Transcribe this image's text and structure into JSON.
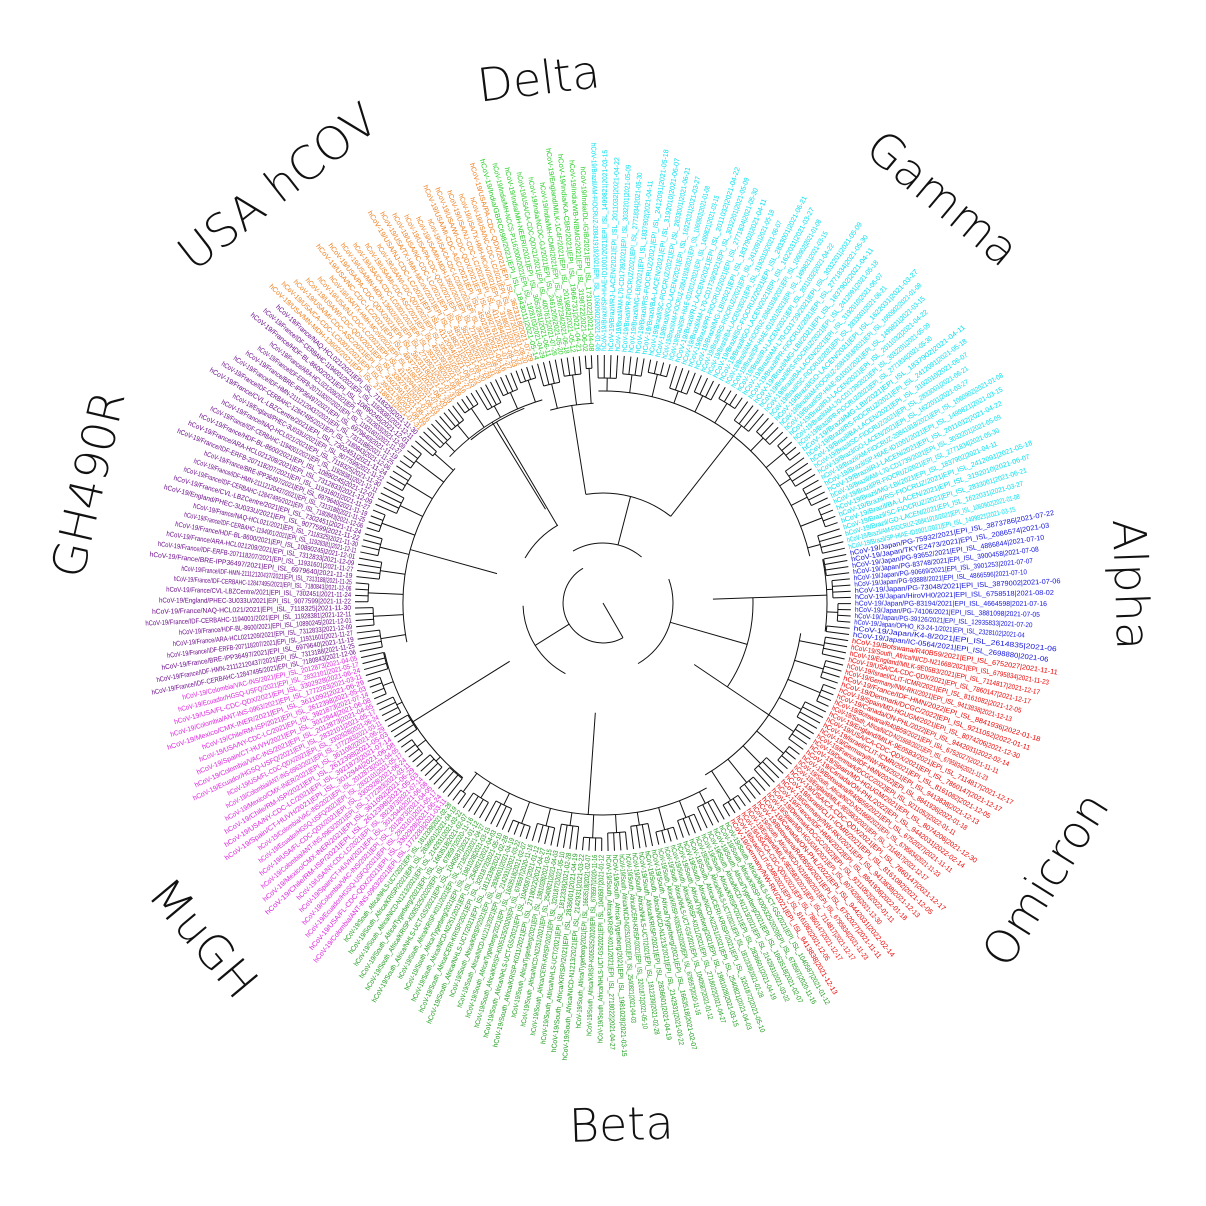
{
  "clades": [
    {
      "key": "delta",
      "label": "Delta",
      "color": "#22cc22",
      "start": -16,
      "end": -2,
      "labelAngle": -7,
      "count": 10
    },
    {
      "key": "gamma",
      "label": "Gamma",
      "color": "#00e0ee",
      "start": -2,
      "end": 78,
      "labelAngle": 40,
      "count": 52
    },
    {
      "key": "alpha",
      "label": "Alpha",
      "color": "#1111dd",
      "start": 78,
      "end": 98,
      "labelAngle": 88,
      "count": 14
    },
    {
      "key": "omicron",
      "label": "Omicron",
      "color": "#ee0000",
      "start": 98,
      "end": 150,
      "labelAngle": 122,
      "count": 36
    },
    {
      "key": "beta",
      "label": "Beta",
      "color": "#1a9a1a",
      "start": 150,
      "end": 218,
      "labelAngle": 178,
      "count": 46
    },
    {
      "key": "mugh",
      "label": "MuGH",
      "color": "#dd22dd",
      "start": 218,
      "end": 258,
      "labelAngle": 230,
      "count": 28
    },
    {
      "key": "gh490r",
      "label": "GH490R",
      "color": "#6a0a8a",
      "start": 258,
      "end": 313,
      "labelAngle": 283,
      "count": 38
    },
    {
      "key": "usa",
      "label": "USA hCOV",
      "color": "#f07c18",
      "start": 313,
      "end": 344,
      "labelAngle": 322,
      "count": 24
    }
  ],
  "leaves": {
    "delta": [
      "hCoV-19/India/GBRC698/2021|EPI_ISL_1843011|2021-05-14",
      "hCoV-19/India/MH-NCCS-P1162000/2021|EPI_ISL_1928103|2021-04-29",
      "hCoV-19/India/MH-NEERI/2021|EPI_ISL_3053281|2021-06-11",
      "hCoV-19/USA/CA-CDC-QDX21/2021|EPI_ISL_4007612|2021-07-26",
      "hCoV-19/India/NCDC-GJ/2021|EPI_ISL_2461205|2021-05-20",
      "hCoV-19/India/MH-ICMR/2021|EPI_ISL_2987234|2021-06-18",
      "hCoV-19/England/MILK-1C4F/2021|EPI_ISL_2019882|2021-05-12",
      "hCoV-19/India/KA-CBR/2021|EPI_ISL_1966731|2021-04-21",
      "hCoV-19/India/WB-NIBMG/2021|EPI_ISL_3198722|2021-06-02",
      "hCoV-19/India/DL-IGIB/2021|EPI_ISL_1731022|2021-04-08"
    ],
    "gamma": [
      "hCoV-19/Brazil/AM-FIOCRUZ-20841918/2021|EPI_ISL_1060902|2021-01-08",
      "hCoV-19/Brazil/SP-HIAE-ID1001/2021|EPI_ISL_1499821|2021-03-15",
      "hCoV-19/Brazil/RJ-LACEN/2021|EPI_ISL_2011032|2021-04-22",
      "hCoV-19/Brazil/AM-L70-CD1739/2021|EPI_ISL_3032201|2021-05-09",
      "hCoV-19/Brazil/PR-FIOCRUZ/2021|EPI_ISL_2771834|2021-05-30",
      "hCoV-19/Brazil/MG-LBI/2021|EPI_ISL_1837902|2021-04-11",
      "hCoV-19/Brazil/RS-FIOCRUZ/2021|EPI_ISL_2412091|2021-05-18",
      "hCoV-19/Brazil/BA-LACEN/2021|EPI_ISL_3192010|2021-06-07",
      "hCoV-19/Brazil/SC-FIOCRUZ/2021|EPI_ISL_2833001|2021-06-21",
      "hCoV-19/Brazil/GO-LACEN/2021|EPI_ISL_1622031|2021-03-27"
    ],
    "alpha": [
      "hCoV-19/Japan/PG-75932/2021|EPI_ISL_3873786|2021-07-22",
      "hCoV-19/Japan/TKYE2473/2021|EPI_ISL_2086574|2021-03",
      "hCoV-19/Japan/PG-93652/2021|EPI_ISL_4886844|2021-07-10",
      "hCoV-19/Japan/PG-83748/2021|EPI_ISL_3900458|2021-07-08",
      "hCoV-19/Japan/PG-90669/2021|EPI_ISL_3901253|2021-07-07",
      "hCoV-19/Japan/PG-93888/2021|EPI_ISL_4866596|2021-07-10",
      "hCoV-19/Japan/PG-73048/2021|EPI_ISL_3879002|2021-07-06",
      "hCoV-19/Japan/HiroVH0/2021|EPI_ISL_6758518|2021-08-02",
      "hCoV-19/Japan/PG-83194/2021|EPI_ISL_4664598|2021-07-16",
      "hCoV-19/Japan/PG-74106/2021|EPI_ISL_3881098|2021-07-05",
      "hCoV-19/Japan/PG-39126/2021|EPI_ISL_12935833|2021-07-20",
      "hCoV-19/Japan/OPHO_K3-24-1/2021|EPI_ISL_2328102|2021-04",
      "hCoV-19/Japan/K4-8/2021|EPI_ISL_2614835|2021-06",
      "hCoV-19/Japan/IC-0564/2021|EPI_ISL_2698880|2021-06"
    ],
    "omicron": [
      "hCoV-19/Botswana/R40B59/2021|EPI_ISL_6752027|2021-11-11",
      "hCoV-19/South_Africa/NICD-N21668/2021|EPI_ISL_6795834|2021-11-23",
      "hCoV-19/England/MILK-9E05B3/2021|EPI_ISL_7114817|2021-12-17",
      "hCoV-19/USA/CA-CDC-QDX/2021|EPI_ISL_7860147|2021-12-17",
      "hCoV-19/Israel/CLIT-ICMR/2021|EPI_ISL_8161082|2021-12-05",
      "hCoV-19/Germany/NW-RKI/2021|EPI_ISL_9413838|2021-12-13",
      "hCoV-19/France/IDF-HMN/2022|EPI_ISL_8841936|2022-01-18",
      "hCoV-19/Denmark/DCGC/2022|EPI_ISL_9211052|2022-01-11",
      "hCoV-19/Spain/MD-HGUGM/2021|EPI_ISL_8074206|2021-12-30",
      "hCoV-19/Canada/ON-PHL/2022|EPI_ISL_9442031|2022-02-14"
    ],
    "beta": [
      "hCoV-19/South_Africa/NHLS-UCT-GS/2021|EPI_ISL_1040587|2021-01-12",
      "hCoV-19/South_Africa/KRISP-K005325/2020|EPI_ISL_678597|2020-11-16",
      "hCoV-19/South_Africa/Tygerberg/2021|EPI_ISL_1663518|2021-02-07",
      "hCoV-19/South_Africa/NICD-N1213/2021|EPI_ISL_2142931|2021-03-22",
      "hCoV-19/South_Africa/KRISP/2021|EPI_ISL_2836601|2021-04-19",
      "hCoV-19/South_Africa/NHLS-UCT/2021|EPI_ISL_1812339|2021-02-28",
      "hCoV-19/South_Africa/CERI-KRISP/2021|EPI_ISL_3201872|2021-05-10",
      "hCoV-19/South_Africa/NICD-N2251/2021|EPI_ISL_2540821|2021-04-03",
      "hCoV-19/South_Africa/Tygerberg/2021|EPI_ISL_1981028|2021-03-15",
      "hCoV-19/South_Africa/KRISP-K011/2021|EPI_ISL_2718022|2021-04-27"
    ],
    "mugh": [
      "hCoV-19/Colombia/ANT-INS-0963/2021|EPI_ISL_1772283|2021-03-11",
      "hCoV-19/USA/FL-CDC-QDX/2021|EPI_ISL_3302928|2021-06-24",
      "hCoV-19/Ecuador/HGSQ-USFQ/2021|EPI_ISL_2832101|2021-05-17",
      "hCoV-19/Colombia/VAC-INS/2021|EPI_ISL_2012873|2021-04-05",
      "hCoV-19/Spain/CT-HUVH/2021|EPI_ISL_3012944|2021-06-08",
      "hCoV-19/USA/NY-CDC-LC/2021|EPI_ISL_3921873|2021-07-14",
      "hCoV-19/Chile/RM-ISP/2021|EPI_ISL_2612398|2021-05-03",
      "hCoV-19/Mexico/CMX-INER/2021|EPI_ISL_3611092|2021-06-29"
    ],
    "gh490r": [
      "hCoV-19/France/IDF-CERBAHC-12847495/2021|EPI_ISL_7180843|2021-12-06",
      "hCoV-19/France/IDF-HMN-21112120437/2021|EPI_ISL_7313188|2021-11-25",
      "hCoV-19/France/BRE-IPP36497/2021|EPI_ISL_6979640|2021-11-19",
      "hCoV-19/France/IDF-ERFB-207118207/2021|EPI_ISL_11931601|2021-11-27",
      "hCoV-19/France/ARA-HCL021209/2021|EPI_ISL_7312833|2021-12-09",
      "hCoV-19/France/HDF-BL-8600/2021|EPI_ISL_10890245|2021-12-01",
      "hCoV-19/France/IDF-CERBAHC-1194001/2021|EPI_ISL_11928381|2021-12-11",
      "hCoV-19/France/NAQ-HCL021/2021|EPI_ISL_7118325|2021-11-30",
      "hCoV-19/England/PHEC-3U033U/2021|EPI_ISL_9077599|2021-11-22",
      "hCoV-19/France/CVL-LBZCentre/2021|EPI_ISL_7302451|2021-11-24"
    ],
    "usa": [
      "hCoV-19/USA/MN-MDH-13602/2021|EPI_ISL_2718921|2021-07-31",
      "hCoV-19/USA/CA-CDC-LC0301/2021|EPI_ISL_3932178|2021-08-09",
      "hCoV-19/USA/MI-CDC-ASC/2021|EPI_ISL_4502391|2021-08-16",
      "hCoV-19/USA/WI-CDC-QDX/2021|EPI_ISL_3392761|2021-07-27",
      "hCoV-19/USA/NJ-CDC-LC/2021|EPI_ISL_4112094|2021-08-03",
      "hCoV-19/USA/TX-HMH-MCoV/2021|EPI_ISL_3188271|2021-07-22",
      "hCoV-19/USA/NC-CDC-LC/2021|EPI_ISL_4837201|2021-08-20",
      "hCoV-19/USA/PA-CDC-QDX/2021|EPI_ISL_3623118|2021-07-29"
    ]
  }
}
